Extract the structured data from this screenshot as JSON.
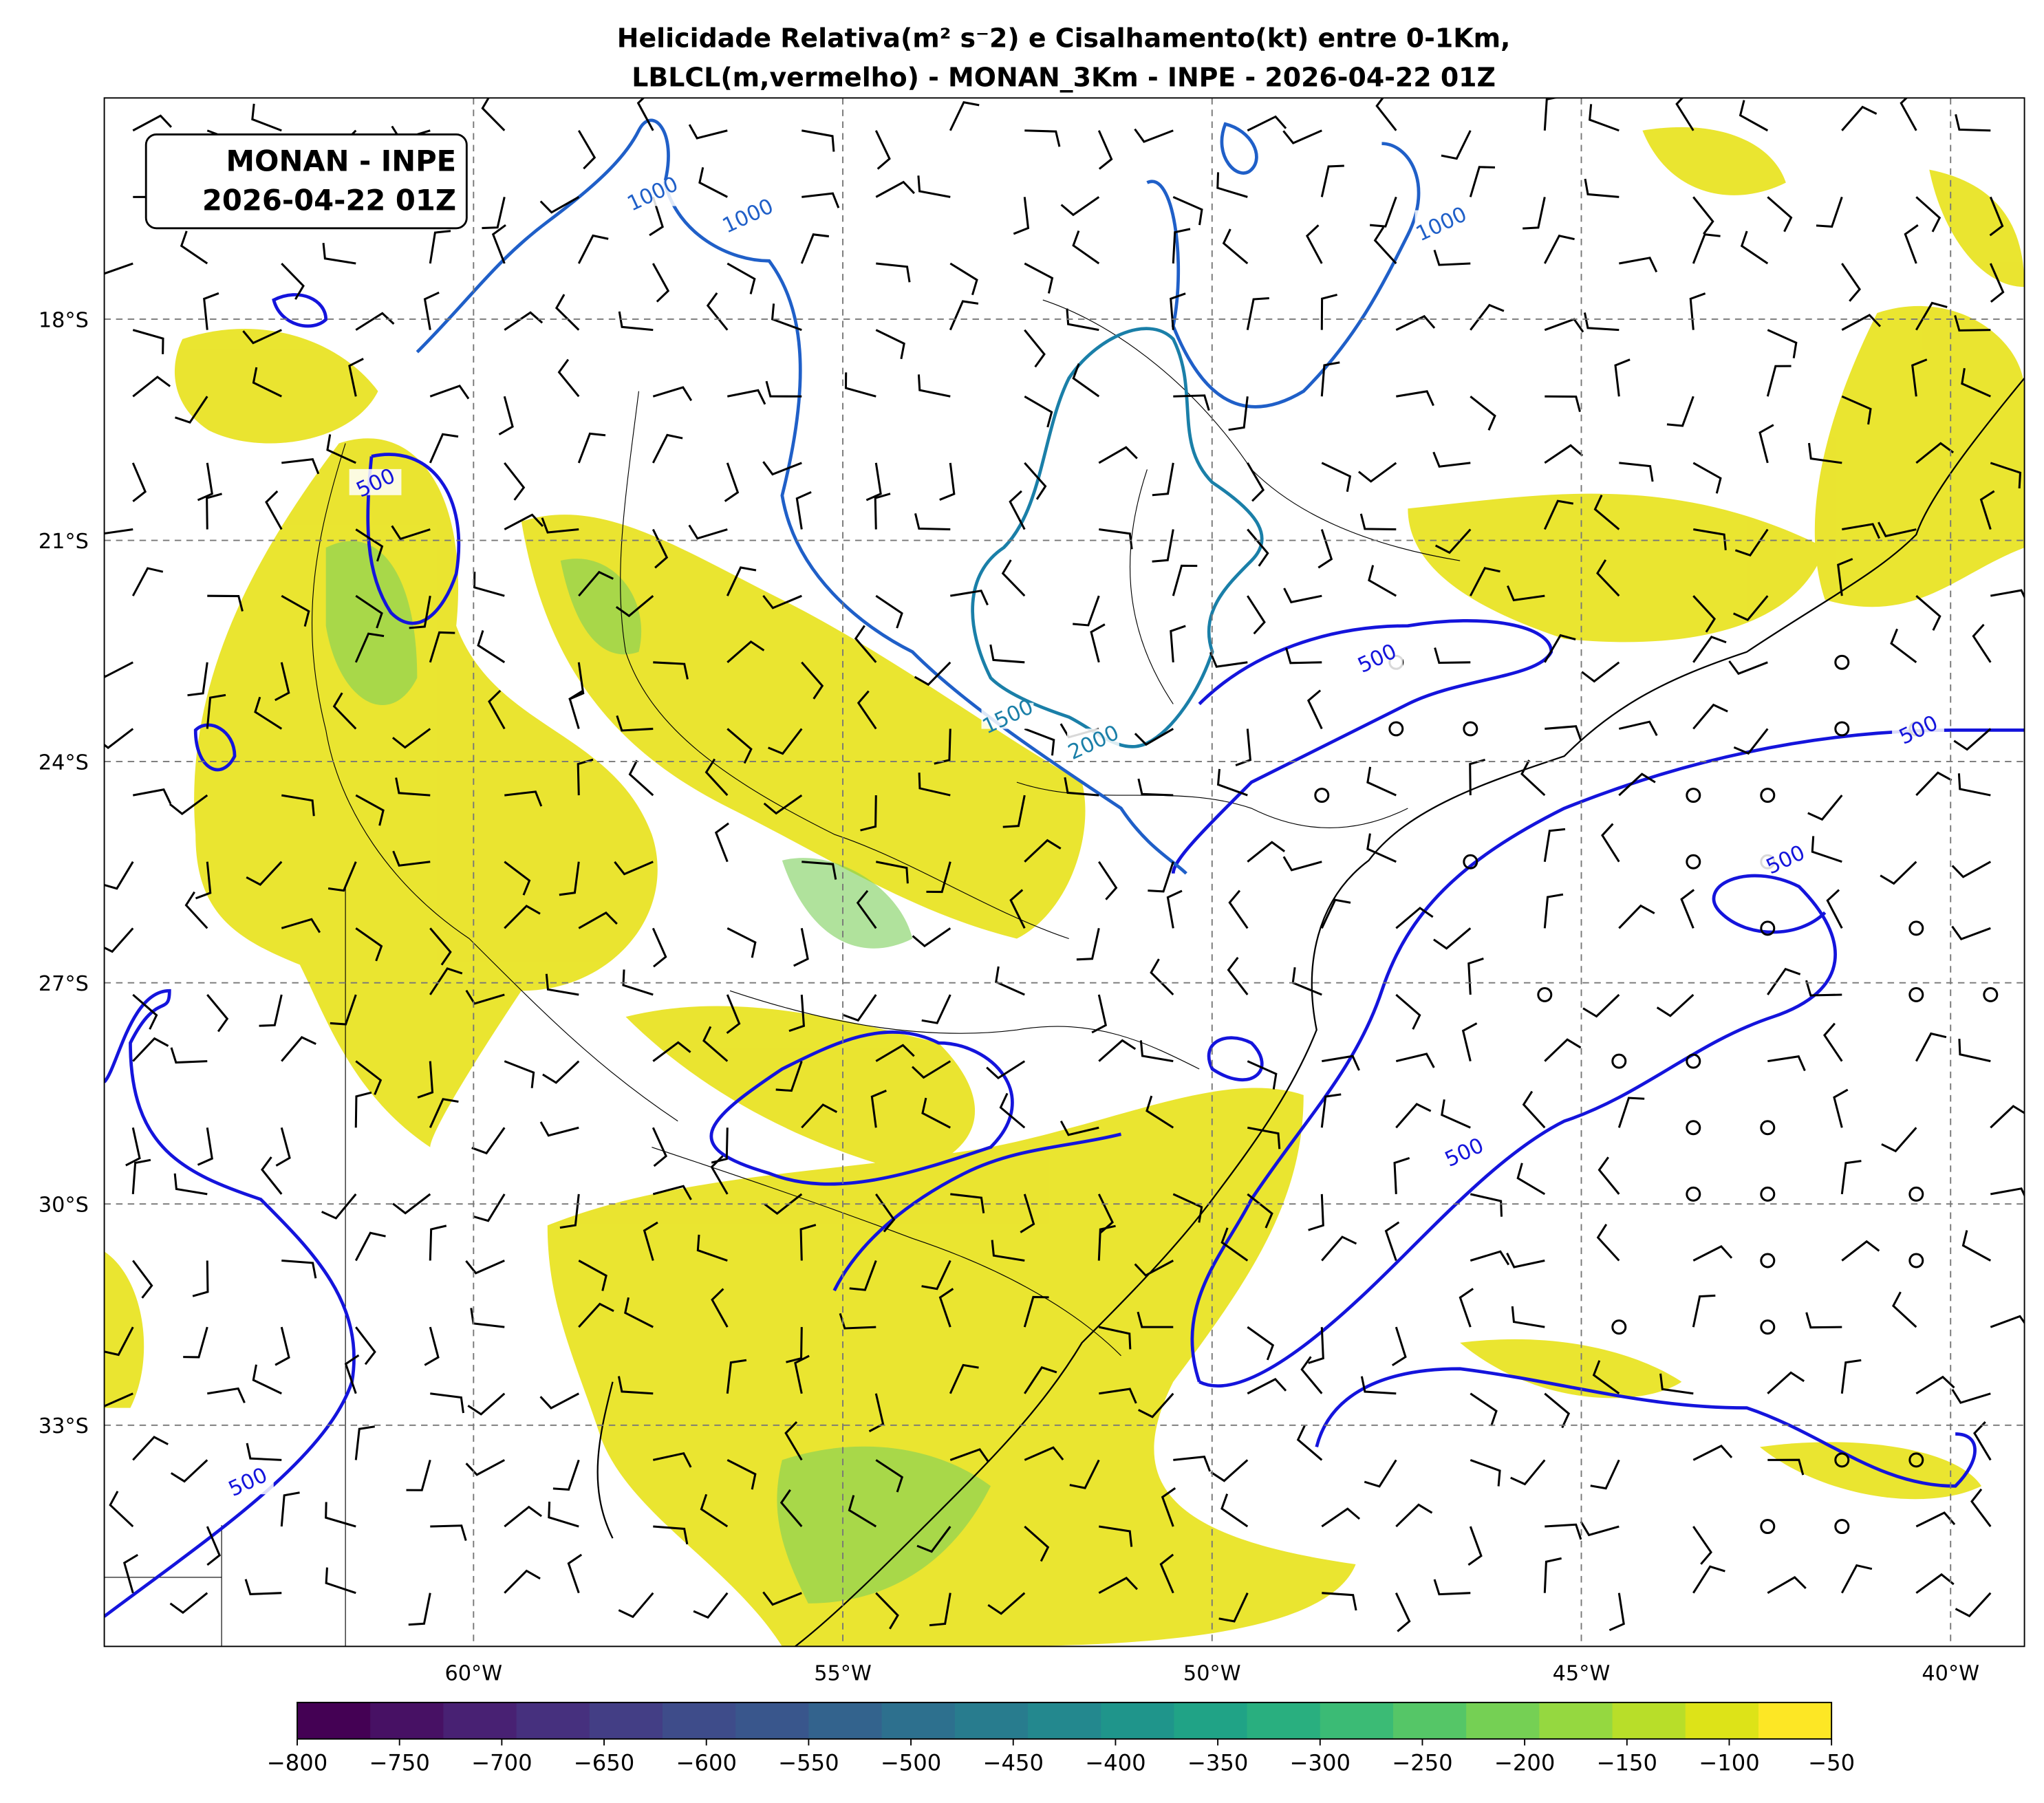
{
  "title": [
    "Helicidade Relativa(m² s⁻2) e Cisalhamento(kt) entre 0-1Km,",
    "LBLCL(m,vermelho) - MONAN_3Km - INPE - 2026-04-22 01Z"
  ],
  "annotation": [
    "MONAN - INPE",
    "2026-04-22 01Z"
  ],
  "extent": {
    "lon": [
      -65,
      -39
    ],
    "lat": [
      -36,
      -15
    ]
  },
  "lat_ticks": [
    {
      "value": -18,
      "label": "18°S"
    },
    {
      "value": -21,
      "label": "21°S"
    },
    {
      "value": -24,
      "label": "24°S"
    },
    {
      "value": -27,
      "label": "27°S"
    },
    {
      "value": -30,
      "label": "30°S"
    },
    {
      "value": -33,
      "label": "33°S"
    }
  ],
  "lon_ticks": [
    {
      "value": -60,
      "label": "60°W"
    },
    {
      "value": -55,
      "label": "55°W"
    },
    {
      "value": -50,
      "label": "50°W"
    },
    {
      "value": -45,
      "label": "45°W"
    },
    {
      "value": -40,
      "label": "40°W"
    }
  ],
  "contour_labels": [
    {
      "value": 1000,
      "lon": -57.58,
      "lat": -16.29,
      "color": "#1f5fc8"
    },
    {
      "value": 1000,
      "lon": -56.29,
      "lat": -16.59,
      "color": "#1f5fc8"
    },
    {
      "value": 1000,
      "lon": -46.9,
      "lat": -16.7,
      "color": "#1f5fc8"
    },
    {
      "value": 500,
      "lon": -61.33,
      "lat": -20.21,
      "color": "#1414dc"
    },
    {
      "value": 500,
      "lon": -47.77,
      "lat": -22.59,
      "color": "#1414dc"
    },
    {
      "value": 1500,
      "lon": -52.77,
      "lat": -23.38,
      "color": "#1a7fa8"
    },
    {
      "value": 2000,
      "lon": -51.61,
      "lat": -23.73,
      "color": "#1a7fa8"
    },
    {
      "value": 500,
      "lon": -40.44,
      "lat": -23.56,
      "color": "#1414dc"
    },
    {
      "value": 500,
      "lon": -42.24,
      "lat": -25.32,
      "color": "#1414dc"
    },
    {
      "value": 500,
      "lon": -46.59,
      "lat": -29.29,
      "color": "#1414dc"
    },
    {
      "value": 500,
      "lon": -63.06,
      "lat": -33.76,
      "color": "#1414dc"
    }
  ],
  "colorbar": {
    "lim": [
      -800,
      -50
    ],
    "ticks": [
      {
        "value": -800,
        "label": "−800"
      },
      {
        "value": -750,
        "label": "−750"
      },
      {
        "value": -700,
        "label": "−700"
      },
      {
        "value": -650,
        "label": "−650"
      },
      {
        "value": -600,
        "label": "−600"
      },
      {
        "value": -550,
        "label": "−550"
      },
      {
        "value": -500,
        "label": "−500"
      },
      {
        "value": -450,
        "label": "−450"
      },
      {
        "value": -400,
        "label": "−400"
      },
      {
        "value": -350,
        "label": "−350"
      },
      {
        "value": -300,
        "label": "−300"
      },
      {
        "value": -250,
        "label": "−250"
      },
      {
        "value": -200,
        "label": "−200"
      },
      {
        "value": -150,
        "label": "−150"
      },
      {
        "value": -100,
        "label": "−100"
      },
      {
        "value": -50,
        "label": "−50"
      }
    ],
    "colors": [
      "#440154",
      "#471164",
      "#482173",
      "#46307e",
      "#433e85",
      "#3e4c8a",
      "#39568c",
      "#33638d",
      "#2d708e",
      "#287c8e",
      "#23888e",
      "#1f958b",
      "#20a386",
      "#29af7f",
      "#3bbb75",
      "#55c667",
      "#75d054",
      "#95d840",
      "#b8de29",
      "#dde318",
      "#fde725"
    ]
  }
}
